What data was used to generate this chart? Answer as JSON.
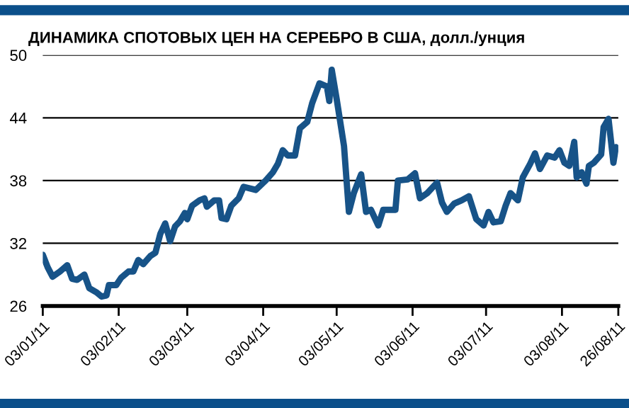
{
  "chart_data": {
    "type": "line",
    "title": "ДИНАМИКА СПОТОВЫХ ЦЕН НА СЕРЕБРО В США, долл./унция",
    "x": [
      "2011-01-03",
      "2011-01-05",
      "2011-01-07",
      "2011-01-10",
      "2011-01-13",
      "2011-01-15",
      "2011-01-17",
      "2011-01-20",
      "2011-01-22",
      "2011-01-25",
      "2011-01-27",
      "2011-01-29",
      "2011-01-30",
      "2011-02-02",
      "2011-02-04",
      "2011-02-07",
      "2011-02-09",
      "2011-02-11",
      "2011-02-13",
      "2011-02-16",
      "2011-02-18",
      "2011-02-20",
      "2011-02-22",
      "2011-02-24",
      "2011-02-26",
      "2011-02-28",
      "2011-03-02",
      "2011-03-03",
      "2011-03-05",
      "2011-03-08",
      "2011-03-10",
      "2011-03-11",
      "2011-03-14",
      "2011-03-16",
      "2011-03-17",
      "2011-03-19",
      "2011-03-21",
      "2011-03-24",
      "2011-03-26",
      "2011-03-31",
      "2011-04-04",
      "2011-04-07",
      "2011-04-09",
      "2011-04-11",
      "2011-04-13",
      "2011-04-16",
      "2011-04-18",
      "2011-04-21",
      "2011-04-23",
      "2011-04-26",
      "2011-04-29",
      "2011-04-30",
      "2011-05-01",
      "2011-05-03",
      "2011-05-06",
      "2011-05-08",
      "2011-05-10",
      "2011-05-13",
      "2011-05-15",
      "2011-05-17",
      "2011-05-20",
      "2011-05-22",
      "2011-05-27",
      "2011-05-28",
      "2011-06-01",
      "2011-06-04",
      "2011-06-06",
      "2011-06-09",
      "2011-06-13",
      "2011-06-15",
      "2011-06-17",
      "2011-06-20",
      "2011-06-23",
      "2011-06-26",
      "2011-06-29",
      "2011-07-02",
      "2011-07-04",
      "2011-07-06",
      "2011-07-09",
      "2011-07-11",
      "2011-07-13",
      "2011-07-16",
      "2011-07-18",
      "2011-07-21",
      "2011-07-23",
      "2011-07-25",
      "2011-07-28",
      "2011-07-31",
      "2011-08-02",
      "2011-08-04",
      "2011-08-06",
      "2011-08-08",
      "2011-08-09",
      "2011-08-11",
      "2011-08-13",
      "2011-08-14",
      "2011-08-16",
      "2011-08-19",
      "2011-08-20",
      "2011-08-22",
      "2011-08-24",
      "2011-08-25"
    ],
    "series": [
      {
        "color": "#175388",
        "values": [
          30.9,
          29.7,
          28.8,
          29.3,
          29.9,
          28.6,
          28.5,
          29.0,
          27.7,
          27.3,
          26.9,
          27.0,
          28.0,
          28.0,
          28.7,
          29.3,
          29.3,
          30.4,
          30.0,
          30.8,
          31.1,
          32.9,
          33.9,
          32.2,
          33.6,
          34.1,
          34.9,
          34.3,
          35.6,
          36.1,
          36.3,
          35.5,
          36.1,
          36.1,
          34.4,
          34.3,
          35.6,
          36.3,
          37.4,
          37.1,
          38.0,
          38.8,
          39.6,
          40.9,
          40.4,
          40.4,
          43.0,
          43.6,
          45.4,
          47.3,
          47.0,
          45.6,
          48.6,
          45.8,
          41.3,
          35.0,
          36.8,
          38.6,
          35.0,
          35.2,
          33.7,
          35.2,
          35.2,
          38.0,
          38.1,
          38.7,
          36.3,
          36.8,
          37.8,
          35.9,
          35.0,
          35.8,
          36.1,
          36.5,
          34.3,
          33.7,
          35.0,
          34.0,
          34.1,
          35.6,
          36.8,
          36.1,
          38.3,
          39.6,
          40.6,
          39.1,
          40.4,
          40.2,
          40.9,
          39.7,
          39.4,
          41.7,
          38.3,
          38.8,
          37.7,
          39.4,
          39.7,
          40.5,
          43.1,
          43.9,
          39.7,
          41.2
        ]
      }
    ],
    "xlim": [
      "2011-01-03",
      "2011-08-26"
    ],
    "xticks": [
      {
        "value": "2011-01-03",
        "label": "03/01/11"
      },
      {
        "value": "2011-02-03",
        "label": "03/02/11"
      },
      {
        "value": "2011-03-03",
        "label": "03/03/11"
      },
      {
        "value": "2011-04-03",
        "label": "03/04/11"
      },
      {
        "value": "2011-05-03",
        "label": "03/05/11"
      },
      {
        "value": "2011-06-03",
        "label": "03/06/11"
      },
      {
        "value": "2011-07-03",
        "label": "03/07/11"
      },
      {
        "value": "2011-08-03",
        "label": "03/08/11"
      },
      {
        "value": "2011-08-26",
        "label": "26/08/11"
      }
    ],
    "ylim": [
      26,
      50
    ],
    "yticks": [
      26,
      32,
      38,
      44,
      50
    ],
    "grid": "y",
    "line_style": "solid",
    "marker": "none"
  }
}
